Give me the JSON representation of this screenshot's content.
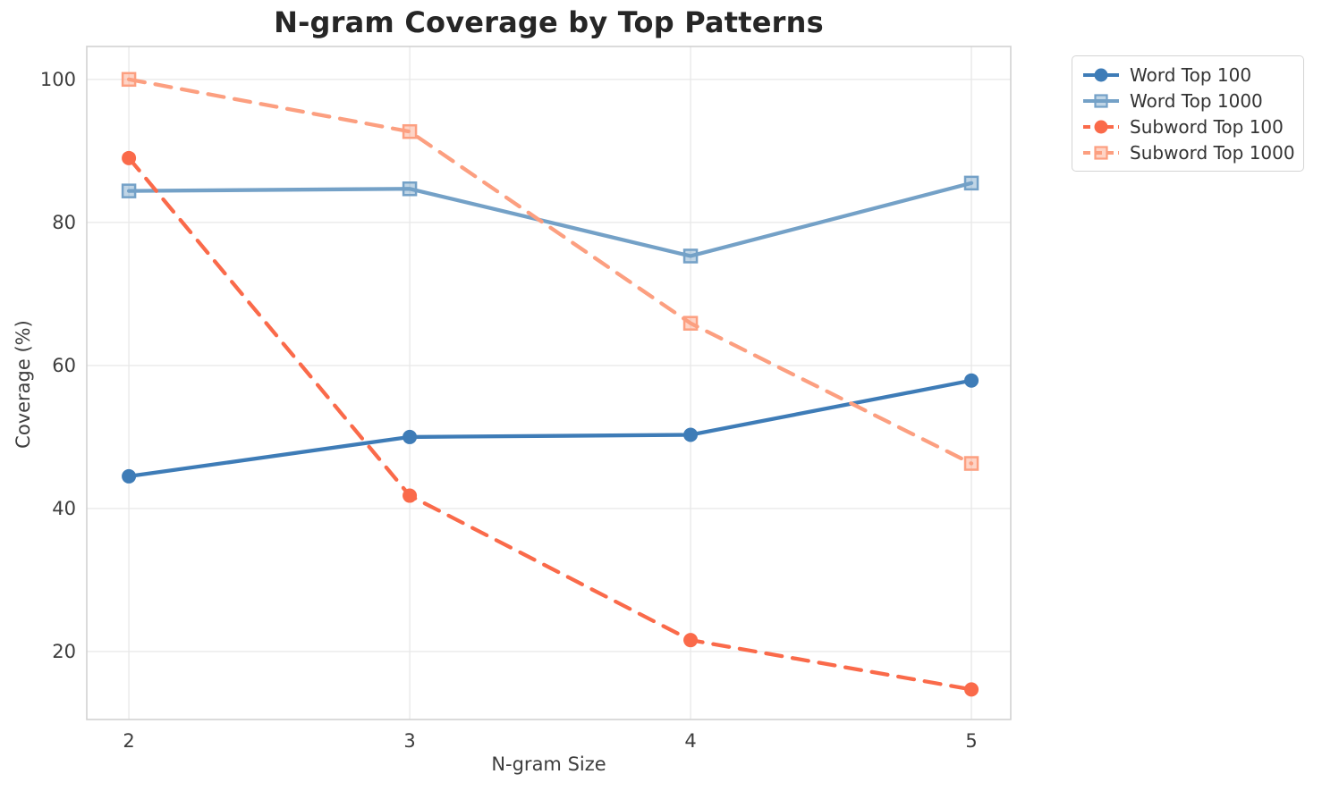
{
  "chart_data": {
    "type": "line",
    "title": "N-gram Coverage by Top Patterns",
    "xlabel": "N-gram Size",
    "ylabel": "Coverage (%)",
    "x": [
      2,
      3,
      4,
      5
    ],
    "xticks": [
      2,
      3,
      4,
      5
    ],
    "yticks": [
      20,
      40,
      60,
      80,
      100
    ],
    "xlim": [
      1.85,
      5.14
    ],
    "ylim": [
      10.5,
      104.6
    ],
    "grid": true,
    "legend_position": "upper-right-outside",
    "series": [
      {
        "name": "Word Top 100",
        "values": [
          44.5,
          50.0,
          50.3,
          57.9
        ],
        "color": "#3e7cb7",
        "linestyle": "solid",
        "marker": "circle"
      },
      {
        "name": "Word Top 1000",
        "values": [
          84.4,
          84.7,
          75.3,
          85.5
        ],
        "color": "#74a1c7",
        "linestyle": "solid",
        "marker": "square"
      },
      {
        "name": "Subword Top 100",
        "values": [
          89.0,
          41.8,
          21.6,
          14.7
        ],
        "color": "#fa6a4a",
        "linestyle": "dashed",
        "marker": "circle"
      },
      {
        "name": "Subword Top 1000",
        "values": [
          100.0,
          92.7,
          65.9,
          46.3
        ],
        "color": "#fc9f80",
        "linestyle": "dashed",
        "marker": "square"
      }
    ]
  }
}
